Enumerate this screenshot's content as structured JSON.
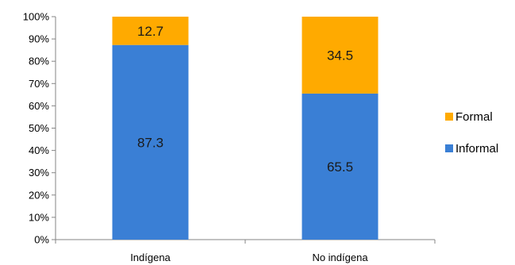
{
  "chart_data": {
    "type": "bar",
    "stacked": true,
    "percent_stacked": true,
    "categories": [
      "Indígena",
      "No indígena"
    ],
    "series": [
      {
        "name": "Informal",
        "values": [
          87.3,
          65.5
        ],
        "color": "#3a7fd5"
      },
      {
        "name": "Formal",
        "values": [
          12.7,
          34.5
        ],
        "color": "#ffaa00"
      }
    ],
    "ylim": [
      0,
      100
    ],
    "yticks": [
      "0%",
      "10%",
      "20%",
      "30%",
      "40%",
      "50%",
      "60%",
      "70%",
      "80%",
      "90%",
      "100%"
    ],
    "grid": false,
    "legend": {
      "position": "right",
      "entries": [
        "Formal",
        "Informal"
      ]
    },
    "title": "",
    "xlabel": "",
    "ylabel": ""
  }
}
